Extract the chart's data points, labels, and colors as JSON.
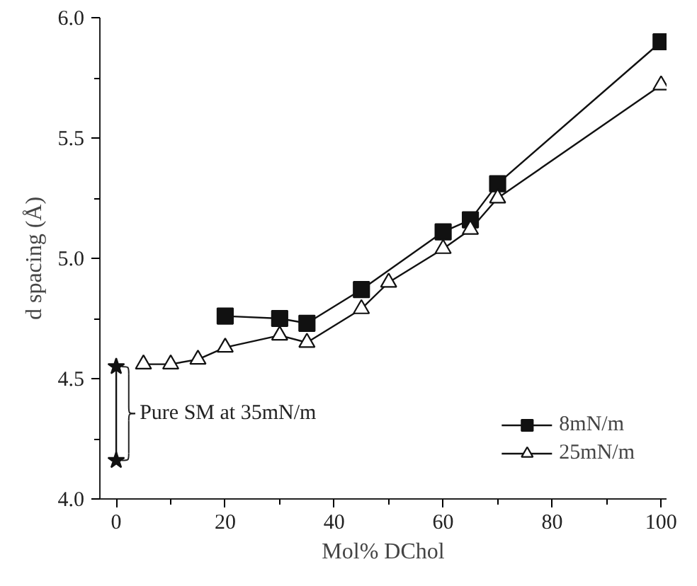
{
  "chart_data": {
    "type": "line",
    "xlabel": "Mol% DChol",
    "ylabel": "d spacing (Å)",
    "xlim": [
      -3,
      101
    ],
    "ylim": [
      4.0,
      6.0
    ],
    "xticks": [
      0,
      {
        "value": 10,
        "label": null
      },
      20,
      {
        "value": 30,
        "label": null
      },
      40,
      {
        "value": 50,
        "label": null
      },
      60,
      {
        "value": 70,
        "label": null
      },
      80,
      {
        "value": 90,
        "label": null
      },
      100
    ],
    "yticks": [
      {
        "value": 4.0,
        "label": "4.0"
      },
      {
        "value": 4.25,
        "label": null
      },
      {
        "value": 4.5,
        "label": "4.5"
      },
      {
        "value": 4.75,
        "label": null
      },
      {
        "value": 5.0,
        "label": "5.0"
      },
      {
        "value": 5.25,
        "label": null
      },
      {
        "value": 5.5,
        "label": "5.5"
      },
      {
        "value": 5.75,
        "label": null
      },
      {
        "value": 6.0,
        "label": "6.0"
      }
    ],
    "series": [
      {
        "name": "8mN/m",
        "color": "#111111",
        "marker": "square",
        "x": [
          20,
          30,
          35,
          45,
          60,
          65,
          70,
          100
        ],
        "values": [
          4.76,
          4.75,
          4.73,
          4.87,
          5.11,
          5.16,
          5.31,
          5.9
        ]
      },
      {
        "name": "25mN/m",
        "color": "#111111",
        "marker": "triangle",
        "x": [
          5,
          10,
          15,
          20,
          30,
          35,
          45,
          50,
          60,
          65,
          70,
          100
        ],
        "values": [
          4.56,
          4.56,
          4.58,
          4.63,
          4.68,
          4.65,
          4.79,
          4.9,
          5.04,
          5.12,
          5.25,
          5.72
        ]
      },
      {
        "color": "#111111",
        "marker": "star",
        "x": [
          0,
          0
        ],
        "values": [
          4.55,
          4.16
        ]
      }
    ],
    "annotations": [
      {
        "text": "Pure SM at 35mN/m",
        "x": 0,
        "y": 4.355
      }
    ],
    "legend": "bottom right",
    "grid": false
  }
}
